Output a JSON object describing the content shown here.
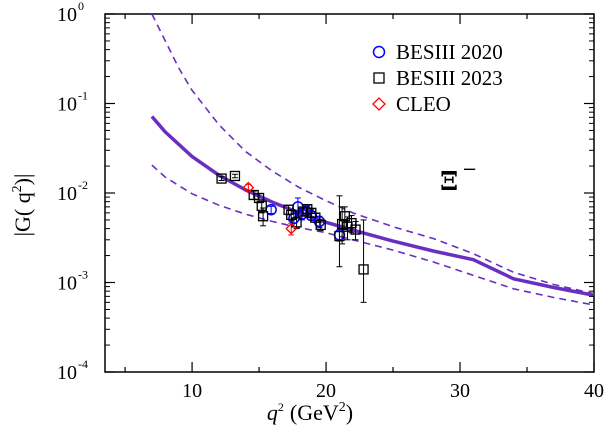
{
  "chart_data": {
    "type": "scatter",
    "title": "",
    "xlabel": "q",
    "xlabel_sup": "2",
    "xlabel_unit": "(GeV",
    "xlabel_unit_sup": "2",
    "xlabel_unit_close": ")",
    "ylabel": "|G( q",
    "ylabel_sup": "2",
    "ylabel_close": ")|",
    "xlim": [
      3.5,
      40
    ],
    "ylim": [
      0.0001,
      1
    ],
    "yscale": "log",
    "x_ticks": [
      "10",
      "20",
      "30",
      "40"
    ],
    "x_tick_values": [
      10,
      20,
      30,
      40
    ],
    "y_ticks": [
      {
        "base": "10",
        "exp": "-4",
        "value": 0.0001
      },
      {
        "base": "10",
        "exp": "-3",
        "value": 0.001
      },
      {
        "base": "10",
        "exp": "-2",
        "value": 0.01
      },
      {
        "base": "10",
        "exp": "-1",
        "value": 0.1
      },
      {
        "base": "10",
        "exp": "0",
        "value": 1
      }
    ],
    "annotation": {
      "text": "Ξ",
      "sup": "−",
      "x": 32.7,
      "y": 0.0095
    },
    "legend": {
      "placement": "top-right",
      "entries": [
        {
          "label": "BESIII 2020",
          "marker": "circle",
          "color": "#0000ff"
        },
        {
          "label": "BESIII 2023",
          "marker": "square",
          "color": "#000000"
        },
        {
          "label": "CLEO",
          "marker": "diamond",
          "color": "#ff0000"
        }
      ]
    },
    "curves": [
      {
        "name": "central",
        "style": "solid",
        "color": "#6a2fbf",
        "x": [
          7,
          8,
          10,
          12,
          14,
          16,
          18,
          20,
          22,
          25,
          28,
          31,
          34,
          37,
          40
        ],
        "y": [
          0.0715,
          0.048,
          0.0255,
          0.0158,
          0.0108,
          0.0079,
          0.006,
          0.0047,
          0.00385,
          0.0029,
          0.00225,
          0.0018,
          0.0011,
          0.00088,
          0.00072
        ]
      },
      {
        "name": "upper-band",
        "style": "dashed",
        "color": "#6a2fbf",
        "x": [
          7,
          8,
          9,
          10,
          12,
          14,
          16,
          18,
          20,
          22,
          25,
          28,
          31,
          34,
          37,
          40
        ],
        "y": [
          1.0,
          0.5,
          0.25,
          0.14,
          0.058,
          0.029,
          0.0175,
          0.0115,
          0.0082,
          0.006,
          0.0042,
          0.0031,
          0.0021,
          0.0013,
          0.00095,
          0.00075
        ]
      },
      {
        "name": "lower-band",
        "style": "dashed",
        "color": "#6a2fbf",
        "x": [
          7,
          8,
          10,
          12,
          14,
          16,
          18,
          20,
          22,
          25,
          28,
          31,
          34,
          37,
          40
        ],
        "y": [
          0.0205,
          0.015,
          0.0098,
          0.0073,
          0.0058,
          0.0048,
          0.0041,
          0.0036,
          0.003,
          0.0023,
          0.0017,
          0.0012,
          0.00085,
          0.00068,
          0.00056
        ]
      }
    ],
    "series": [
      {
        "name": "BESIII 2020",
        "marker": "circle",
        "color": "#0000ff",
        "points": [
          {
            "x": 15.9,
            "y": 0.0065,
            "err_lo": 0.0006,
            "err_hi": 0.0006
          },
          {
            "x": 17.6,
            "y": 0.0052,
            "err_lo": 0.001,
            "err_hi": 0.0012
          },
          {
            "x": 17.9,
            "y": 0.007,
            "err_lo": 0.0015,
            "err_hi": 0.0018
          },
          {
            "x": 18.2,
            "y": 0.0058,
            "err_lo": 0.0008,
            "err_hi": 0.0009
          },
          {
            "x": 18.5,
            "y": 0.0063,
            "err_lo": 0.0007,
            "err_hi": 0.0008
          },
          {
            "x": 18.9,
            "y": 0.0056,
            "err_lo": 0.0006,
            "err_hi": 0.0006
          },
          {
            "x": 19.5,
            "y": 0.0048,
            "err_lo": 0.0007,
            "err_hi": 0.0007
          },
          {
            "x": 21.0,
            "y": 0.0034,
            "err_lo": 0.0005,
            "err_hi": 0.0005
          }
        ]
      },
      {
        "name": "BESIII 2023",
        "marker": "square",
        "color": "#000000",
        "points": [
          {
            "x": 12.2,
            "y": 0.0145,
            "err_lo": 0.0007,
            "err_hi": 0.0007
          },
          {
            "x": 13.2,
            "y": 0.0155,
            "err_lo": 0.0007,
            "err_hi": 0.0007
          },
          {
            "x": 14.6,
            "y": 0.0095,
            "err_lo": 0.001,
            "err_hi": 0.001
          },
          {
            "x": 15.0,
            "y": 0.0088,
            "err_lo": 0.001,
            "err_hi": 0.001
          },
          {
            "x": 15.2,
            "y": 0.0072,
            "err_lo": 0.0012,
            "err_hi": 0.0012
          },
          {
            "x": 15.3,
            "y": 0.0055,
            "err_lo": 0.0012,
            "err_hi": 0.0013
          },
          {
            "x": 17.2,
            "y": 0.0065,
            "err_lo": 0.0008,
            "err_hi": 0.0008
          },
          {
            "x": 17.4,
            "y": 0.0057,
            "err_lo": 0.0008,
            "err_hi": 0.0008
          },
          {
            "x": 17.8,
            "y": 0.0047,
            "err_lo": 0.0007,
            "err_hi": 0.0007
          },
          {
            "x": 18.3,
            "y": 0.0062,
            "err_lo": 0.0006,
            "err_hi": 0.0006
          },
          {
            "x": 18.6,
            "y": 0.0066,
            "err_lo": 0.0006,
            "err_hi": 0.0006
          },
          {
            "x": 18.9,
            "y": 0.006,
            "err_lo": 0.0006,
            "err_hi": 0.0006
          },
          {
            "x": 19.2,
            "y": 0.0053,
            "err_lo": 0.0006,
            "err_hi": 0.0006
          },
          {
            "x": 19.6,
            "y": 0.0044,
            "err_lo": 0.0006,
            "err_hi": 0.0006
          },
          {
            "x": 21.0,
            "y": 0.0033,
            "err_lo": 0.0018,
            "err_hi": 0.006
          },
          {
            "x": 21.2,
            "y": 0.0045,
            "err_lo": 0.0018,
            "err_hi": 0.0025
          },
          {
            "x": 21.4,
            "y": 0.0055,
            "err_lo": 0.0016,
            "err_hi": 0.0015
          },
          {
            "x": 21.6,
            "y": 0.0042,
            "err_lo": 0.0012,
            "err_hi": 0.0012
          },
          {
            "x": 21.9,
            "y": 0.0046,
            "err_lo": 0.001,
            "err_hi": 0.001
          },
          {
            "x": 22.2,
            "y": 0.0039,
            "err_lo": 0.0009,
            "err_hi": 0.0009
          },
          {
            "x": 22.8,
            "y": 0.0014,
            "err_lo": 0.0008,
            "err_hi": 0.0036
          }
        ]
      },
      {
        "name": "CLEO",
        "marker": "diamond",
        "color": "#ff0000",
        "points": [
          {
            "x": 14.2,
            "y": 0.0115,
            "err_lo": 0.001,
            "err_hi": 0.001
          },
          {
            "x": 17.4,
            "y": 0.004,
            "err_lo": 0.0006,
            "err_hi": 0.0006
          }
        ]
      }
    ]
  }
}
